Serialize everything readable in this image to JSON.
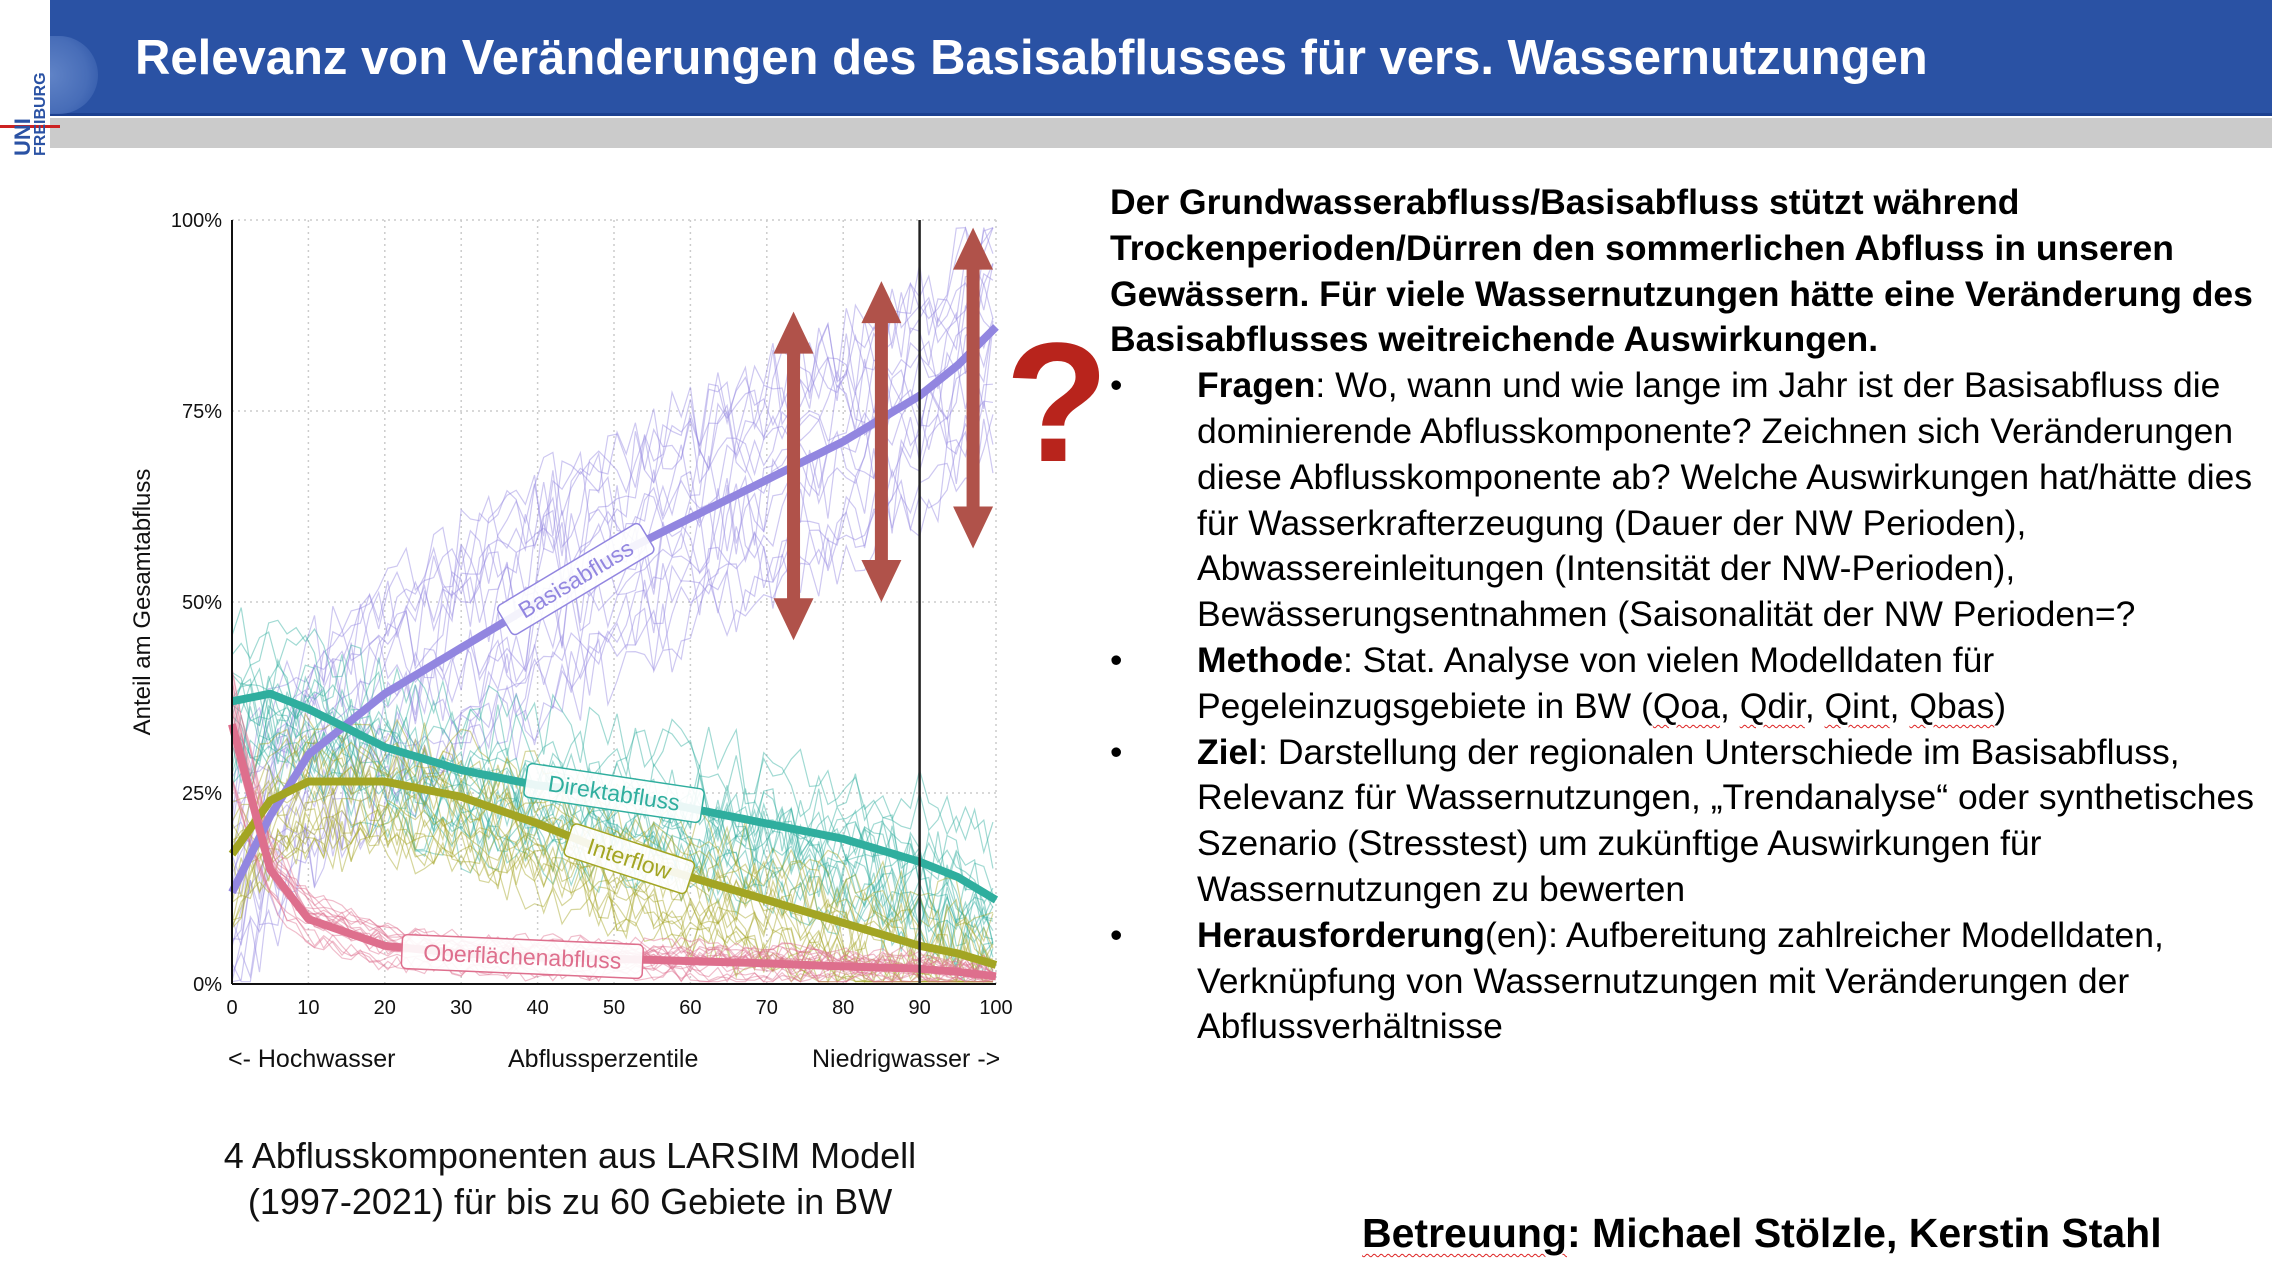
{
  "header": {
    "title": "Relevanz von Veränderungen des Basisabflusses für vers. Wassernutzungen",
    "logo_text_1": "UNI",
    "logo_text_2": "FREIBURG"
  },
  "colors": {
    "header_blue": "#2a52a4",
    "basis": "#9286e0",
    "direkt": "#2fae9e",
    "interflow": "#a3a523",
    "oberflaeche": "#de6f8d",
    "arrow": "#b0524a",
    "question": "#b8241c"
  },
  "chart_data": {
    "type": "line",
    "ylabel": "Anteil am Gesamtabfluss",
    "xlabel": "Abflussperzentile",
    "xlabel_left": "<- Hochwasser",
    "xlabel_right": "Niedrigwasser ->",
    "xlim": [
      0,
      100
    ],
    "ylim": [
      0,
      100
    ],
    "xticks": [
      "0",
      "10",
      "20",
      "30",
      "40",
      "50",
      "60",
      "70",
      "80",
      "90",
      "100"
    ],
    "yticks": [
      "0%",
      "25%",
      "50%",
      "75%",
      "100%"
    ],
    "grid": true,
    "vline_x": 90,
    "x": [
      0,
      5,
      10,
      20,
      30,
      40,
      50,
      60,
      70,
      80,
      90,
      95,
      100
    ],
    "series": [
      {
        "name": "Basisabfluss",
        "key": "basis",
        "values": [
          12,
          22,
          30,
          38,
          44,
          50,
          56,
          61,
          66,
          71,
          77,
          81,
          86
        ]
      },
      {
        "name": "Direktabfluss",
        "key": "direkt",
        "values": [
          37,
          38,
          36,
          31,
          28,
          26,
          25,
          23,
          21,
          19,
          16,
          14,
          11
        ]
      },
      {
        "name": "Interflow",
        "key": "interflow",
        "values": [
          17,
          24,
          26.5,
          26.5,
          24.5,
          21,
          17,
          14,
          11,
          8,
          5,
          4,
          2.5
        ]
      },
      {
        "name": "Oberflächenabfluss",
        "key": "oberflaeche",
        "values": [
          34,
          15,
          8.5,
          5,
          4,
          3.5,
          3.3,
          3,
          2.7,
          2.3,
          2,
          1.6,
          1
        ]
      }
    ],
    "series_labels_at_x": [
      45,
      50,
      52,
      38
    ],
    "annotations": [
      {
        "type": "double-arrow",
        "x": 73.5,
        "y_from": 45,
        "y_to": 88
      },
      {
        "type": "double-arrow",
        "x": 85,
        "y_from": 50,
        "y_to": 92
      },
      {
        "type": "double-arrow",
        "x": 97,
        "y_from": 57,
        "y_to": 99
      }
    ]
  },
  "caption": {
    "line1": "4 Abflusskomponenten aus LARSIM Modell",
    "line2": "(1997-2021) für bis zu 60 Gebiete in BW"
  },
  "question_mark": "?",
  "text": {
    "intro": "Der Grundwasserabfluss/Basisabfluss stützt während Trockenperioden/Dürren den sommerlichen Abfluss in unseren Gewässern. Für viele Wassernutzungen hätte eine Veränderung des Basisabflusses weitreichende Auswirkungen.",
    "bullet": "•",
    "bullets": [
      {
        "label": "Fragen",
        "text": ": Wo, wann und wie lange im Jahr ist der Basisabfluss die dominierende Abflusskomponente? Zeichnen sich Veränderungen diese Abflusskomponente ab? Welche Auswirkungen hat/hätte dies für Wasserkrafterzeugung (Dauer der NW Perioden), Abwassereinleitungen (Intensität der NW-Perioden), Bewässerungsentnahmen (Saisonalität der NW Perioden=?"
      },
      {
        "label": "Methode",
        "text": ": Stat. Analyse von vielen Modelldaten für Pegeleinzugsgebiete in BW (",
        "q1": "Qoa",
        "sep": ", ",
        "q2": "Qdir",
        "q3": "Qint",
        "q4": "Qbas",
        "end": ")"
      },
      {
        "label": "Ziel",
        "text": ": Darstellung der regionalen Unterschiede im Basisabfluss, Relevanz für Wassernutzungen, „Trendanalyse“ oder synthetisches Szenario (Stresstest) um zukünftige Auswirkungen für Wassernutzungen zu bewerten"
      },
      {
        "label": "Herausforderung",
        "text": "(en): Aufbereitung zahlreicher Modelldaten, Verknüpfung von Wassernutzungen mit Veränderungen der Abflussverhältnisse"
      }
    ]
  },
  "supervision": {
    "label": "Betreuung",
    "names": ": Michael Stölzle, Kerstin Stahl"
  }
}
